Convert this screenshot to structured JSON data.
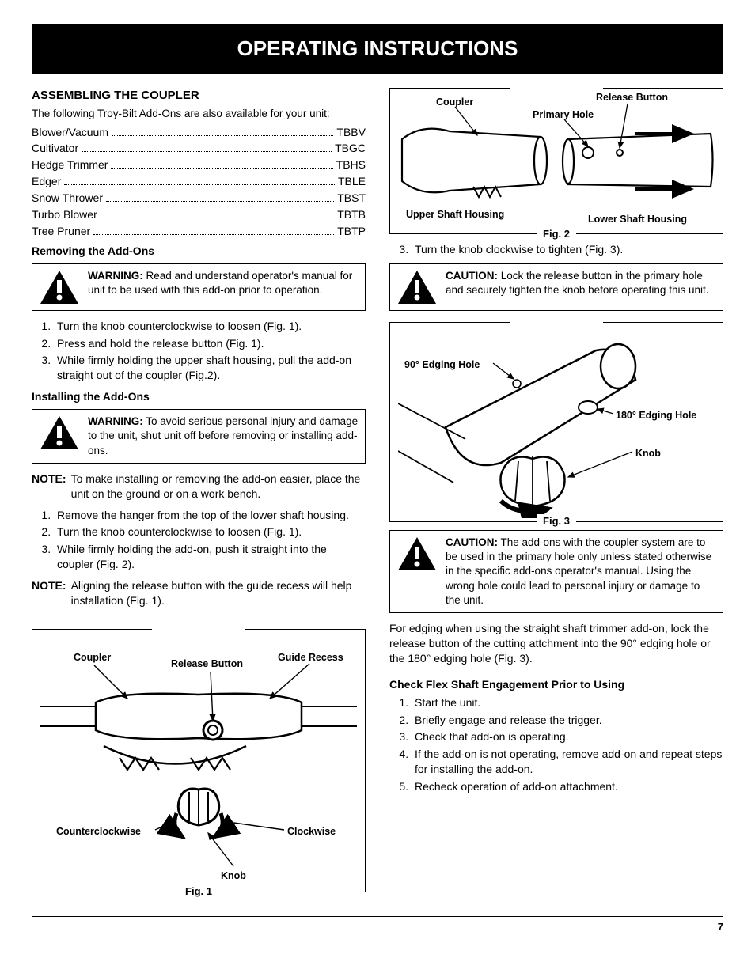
{
  "title": "OPERATING INSTRUCTIONS",
  "page_number": "7",
  "left": {
    "assembling_heading": "ASSEMBLING THE COUPLER",
    "intro": "The following Troy-Bilt Add-Ons are also available for your unit:",
    "addons": [
      {
        "name": "Blower/Vacuum",
        "code": "TBBV"
      },
      {
        "name": "Cultivator",
        "code": "TBGC"
      },
      {
        "name": "Hedge Trimmer",
        "code": "TBHS"
      },
      {
        "name": "Edger",
        "code": "TBLE"
      },
      {
        "name": "Snow Thrower",
        "code": "TBST"
      },
      {
        "name": "Turbo Blower",
        "code": "TBTB"
      },
      {
        "name": "Tree Pruner",
        "code": "TBTP"
      }
    ],
    "removing_heading": "Removing the Add-Ons",
    "warning1_label": "WARNING:",
    "warning1_text": " Read and understand operator's manual for unit to be used with this add-on prior to operation.",
    "removing_steps": [
      "Turn the knob counterclockwise to loosen (Fig. 1).",
      "Press and hold the release button (Fig. 1).",
      "While firmly holding the upper shaft housing, pull the add-on straight out of the coupler (Fig.2)."
    ],
    "installing_heading": "Installing the Add-Ons",
    "warning2_label": "WARNING:",
    "warning2_text": " To avoid serious personal injury and damage to the unit, shut unit off before removing or installing add-ons.",
    "note1_label": "NOTE:",
    "note1_text": "To make installing or removing the add-on easier, place the unit on the ground or on a work bench.",
    "installing_steps": [
      "Remove the hanger from the top of the lower shaft housing.",
      "Turn the knob counterclockwise to loosen (Fig. 1).",
      "While firmly holding the add-on, push it straight into the coupler (Fig. 2)."
    ],
    "note2_label": "NOTE:",
    "note2_text": "Aligning the release button with the guide recess will help installation (Fig. 1).",
    "fig1": {
      "caption": "Fig. 1",
      "labels": {
        "coupler": "Coupler",
        "release_button": "Release Button",
        "guide_recess": "Guide Recess",
        "ccw": "Counterclockwise",
        "cw": "Clockwise",
        "knob": "Knob"
      }
    }
  },
  "right": {
    "fig2": {
      "caption": "Fig. 2",
      "labels": {
        "coupler": "Coupler",
        "release_button": "Release Button",
        "primary_hole": "Primary Hole",
        "upper_shaft": "Upper Shaft Housing",
        "lower_shaft": "Lower Shaft Housing"
      }
    },
    "step3_single": [
      "Turn the knob clockwise to tighten (Fig. 3)."
    ],
    "caution1_label": "CAUTION:",
    "caution1_text": " Lock the release button in the primary hole and securely tighten the knob before operating this unit.",
    "fig3": {
      "caption": "Fig. 3",
      "labels": {
        "hole90": "90° Edging Hole",
        "hole180": "180° Edging Hole",
        "knob": "Knob"
      }
    },
    "caution2_label": "CAUTION:",
    "caution2_text": " The add-ons with the coupler system are to be used in the primary hole only unless stated otherwise in the specific add-ons operator's manual. Using the wrong hole could lead to personal injury or damage to the unit.",
    "edging_para": "For edging when using the straight shaft trimmer add-on, lock the release button of the cutting attchment into the 90° edging hole or the 180° edging hole (Fig. 3).",
    "flex_heading": "Check Flex Shaft Engagement Prior to Using",
    "flex_steps": [
      "Start the unit.",
      "Briefly engage and release the trigger.",
      "Check that add-on is operating.",
      "If the add-on is not operating, remove add-on and repeat steps for installing the add-on.",
      "Recheck operation of add-on attachment."
    ]
  },
  "colors": {
    "black": "#000000",
    "white": "#ffffff"
  }
}
